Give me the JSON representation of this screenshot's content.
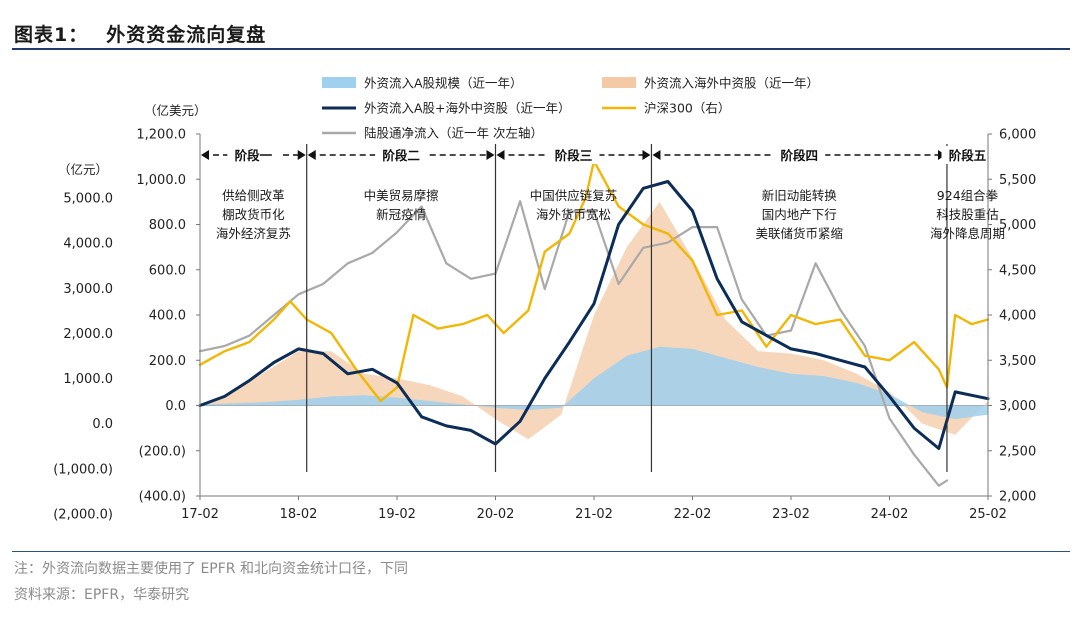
{
  "figure": {
    "title_label": "图表1：",
    "title_text": "外资资金流向复盘",
    "note": "注：外资流向数据主要使用了 EPFR 和北向资金统计口径，下同",
    "source": "资料来源：EPFR，华泰研究"
  },
  "colors": {
    "blue_area": "#9fd0ee",
    "orange_area": "#f4c9a6",
    "navy_line": "#0c2d57",
    "gold_line": "#f2b705",
    "gray_line": "#a9a9a9",
    "rule": "#1f3b6e"
  },
  "chart_data": {
    "type": "line",
    "legend": {
      "placement": "top",
      "items": [
        {
          "key": "a_shares",
          "label": "外资流入A股规模（近一年）",
          "style": "area",
          "color": "#9fd0ee"
        },
        {
          "key": "overseas",
          "label": "外资流入海外中资股（近一年）",
          "style": "area",
          "color": "#f4c9a6"
        },
        {
          "key": "total",
          "label": "外资流入A股+海外中资股（近一年）",
          "style": "line",
          "color": "#0c2d57"
        },
        {
          "key": "csi300",
          "label": "沪深300（右）",
          "style": "line",
          "color": "#f2b705"
        },
        {
          "key": "northbound",
          "label": "陆股通净流入（近一年 次左轴）",
          "style": "line",
          "color": "#a9a9a9"
        }
      ]
    },
    "axes": {
      "left_unit": "（亿美元）",
      "left_ylim": [
        -400,
        1200
      ],
      "left_ticks": [
        "1,200.0",
        "1,000.0",
        "800.0",
        "600.0",
        "400.0",
        "200.0",
        "0.0",
        "(200.0)",
        "(400.0)"
      ],
      "secondary_unit": "（亿元）",
      "secondary_ylim": [
        -2000,
        5000
      ],
      "secondary_ticks": [
        "5,000.0",
        "4,000.0",
        "3,000.0",
        "2,000.0",
        "1,000.0",
        "0.0",
        "(1,000.0)",
        "(2,000.0)"
      ],
      "right_ylim": [
        2000,
        6000
      ],
      "right_ticks": [
        "6,000",
        "5,500",
        "5,000",
        "4,500",
        "4,000",
        "3,500",
        "3,000",
        "2,500",
        "2,000"
      ],
      "x_ticks": [
        "17-02",
        "18-02",
        "19-02",
        "20-02",
        "21-02",
        "22-02",
        "23-02",
        "24-02",
        "25-02"
      ],
      "x_range": [
        "2017-02",
        "2025-02"
      ]
    },
    "stages": [
      {
        "label": "阶段一",
        "start": "2017-02",
        "end": "2018-03",
        "lines": [
          "供给侧改革",
          "棚改货币化",
          "海外经济复苏"
        ]
      },
      {
        "label": "阶段二",
        "start": "2018-03",
        "end": "2020-02",
        "lines": [
          "中美贸易摩擦",
          "新冠疫情"
        ]
      },
      {
        "label": "阶段三",
        "start": "2020-02",
        "end": "2021-09",
        "lines": [
          "中国供应链复苏",
          "海外货币宽松"
        ]
      },
      {
        "label": "阶段四",
        "start": "2021-09",
        "end": "2024-09",
        "lines": [
          "新旧动能转换",
          "国内地产下行",
          "美联储货币紧缩"
        ]
      },
      {
        "label": "阶段五",
        "start": "2024-09",
        "end": "2025-02",
        "lines": [
          "924组合拳",
          "科技股重估",
          "海外降息周期"
        ]
      }
    ],
    "series": [
      {
        "name": "外资流入A股规模（近一年）",
        "axis": "left",
        "x": [
          "2017-02",
          "2017-06",
          "2017-10",
          "2018-02",
          "2018-06",
          "2018-10",
          "2019-02",
          "2019-06",
          "2019-10",
          "2020-02",
          "2020-06",
          "2020-10",
          "2021-02",
          "2021-06",
          "2021-10",
          "2022-02",
          "2022-06",
          "2022-10",
          "2023-02",
          "2023-06",
          "2023-10",
          "2024-02",
          "2024-06",
          "2024-10",
          "2025-02"
        ],
        "values": [
          5,
          10,
          15,
          25,
          40,
          45,
          35,
          20,
          5,
          -10,
          -20,
          -10,
          120,
          220,
          260,
          250,
          210,
          170,
          140,
          130,
          100,
          50,
          -30,
          -60,
          -40
        ]
      },
      {
        "name": "外资流入海外中资股（近一年）",
        "axis": "left",
        "x": [
          "2017-02",
          "2017-06",
          "2017-10",
          "2018-02",
          "2018-06",
          "2018-10",
          "2019-02",
          "2019-06",
          "2019-10",
          "2020-02",
          "2020-06",
          "2020-10",
          "2021-02",
          "2021-06",
          "2021-10",
          "2022-02",
          "2022-06",
          "2022-10",
          "2023-02",
          "2023-06",
          "2023-10",
          "2024-02",
          "2024-06",
          "2024-10",
          "2025-02"
        ],
        "values": [
          5,
          60,
          150,
          240,
          240,
          140,
          120,
          90,
          40,
          -60,
          -150,
          -40,
          400,
          700,
          900,
          650,
          380,
          240,
          230,
          200,
          140,
          60,
          -80,
          -130,
          20
        ]
      },
      {
        "name": "外资流入A股+海外中资股（近一年）",
        "axis": "left",
        "x": [
          "2017-02",
          "2017-05",
          "2017-08",
          "2017-11",
          "2018-02",
          "2018-05",
          "2018-08",
          "2018-11",
          "2019-02",
          "2019-05",
          "2019-08",
          "2019-11",
          "2020-02",
          "2020-05",
          "2020-08",
          "2020-11",
          "2021-02",
          "2021-05",
          "2021-08",
          "2021-11",
          "2022-02",
          "2022-05",
          "2022-08",
          "2022-11",
          "2023-02",
          "2023-05",
          "2023-08",
          "2023-11",
          "2024-02",
          "2024-05",
          "2024-08",
          "2024-10",
          "2025-02"
        ],
        "values": [
          0,
          40,
          110,
          190,
          250,
          230,
          140,
          160,
          100,
          -50,
          -90,
          -110,
          -170,
          -70,
          120,
          280,
          450,
          800,
          960,
          990,
          860,
          560,
          370,
          310,
          250,
          230,
          200,
          170,
          40,
          -100,
          -190,
          60,
          30
        ]
      },
      {
        "name": "沪深300（右）",
        "axis": "right",
        "x": [
          "2017-02",
          "2017-05",
          "2017-08",
          "2017-11",
          "2018-01",
          "2018-03",
          "2018-06",
          "2018-09",
          "2018-12",
          "2019-02",
          "2019-04",
          "2019-07",
          "2019-10",
          "2020-01",
          "2020-03",
          "2020-06",
          "2020-08",
          "2020-11",
          "2021-01",
          "2021-02",
          "2021-05",
          "2021-08",
          "2021-11",
          "2022-02",
          "2022-05",
          "2022-08",
          "2022-11",
          "2023-02",
          "2023-05",
          "2023-08",
          "2023-11",
          "2024-02",
          "2024-05",
          "2024-08",
          "2024-09",
          "2024-10",
          "2024-12",
          "2025-02"
        ],
        "values": [
          3450,
          3600,
          3700,
          3950,
          4150,
          3950,
          3800,
          3400,
          3050,
          3200,
          4000,
          3850,
          3900,
          4000,
          3800,
          4050,
          4700,
          4900,
          5300,
          5700,
          5200,
          5000,
          4900,
          4600,
          4000,
          4050,
          3650,
          4000,
          3900,
          3950,
          3550,
          3500,
          3700,
          3400,
          3200,
          4000,
          3900,
          3950
        ]
      },
      {
        "name": "陆股通净流入（近一年 次左轴）",
        "axis": "secondary",
        "x": [
          "2017-02",
          "2017-05",
          "2017-08",
          "2017-11",
          "2018-02",
          "2018-05",
          "2018-08",
          "2018-11",
          "2019-02",
          "2019-05",
          "2019-08",
          "2019-11",
          "2020-02",
          "2020-05",
          "2020-08",
          "2020-11",
          "2021-02",
          "2021-05",
          "2021-08",
          "2021-11",
          "2022-02",
          "2022-05",
          "2022-08",
          "2022-11",
          "2023-02",
          "2023-05",
          "2023-08",
          "2023-11",
          "2024-02",
          "2024-05",
          "2024-08",
          "2024-09"
        ],
        "values": [
          800,
          900,
          1100,
          1500,
          1900,
          2100,
          2500,
          2700,
          3100,
          3600,
          2500,
          2200,
          2300,
          3700,
          2000,
          3500,
          3500,
          2100,
          2800,
          2900,
          3200,
          3200,
          1800,
          1100,
          1200,
          2500,
          1600,
          900,
          -500,
          -1200,
          -1800,
          -1700
        ]
      }
    ]
  }
}
